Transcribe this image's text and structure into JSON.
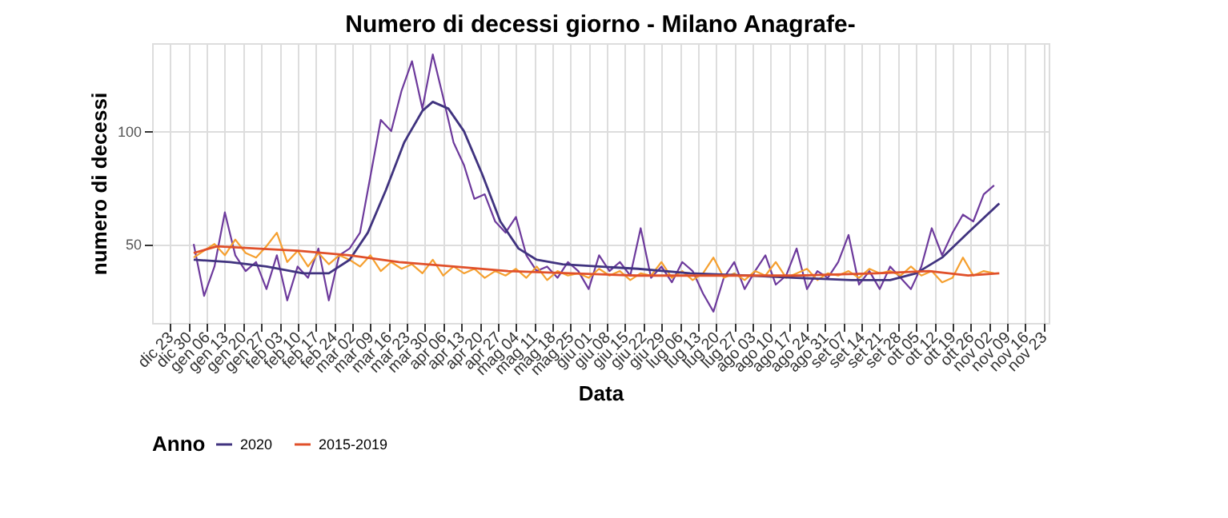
{
  "chart_data": {
    "type": "line",
    "title": "Numero di decessi giorno - Milano Anagrafe-",
    "xlabel": "Data",
    "ylabel": "numero di decessi",
    "legend_title": "Anno",
    "legend": "bottom",
    "grid": true,
    "xlim": [
      "2019-12-16",
      "2020-11-25"
    ],
    "ylim": [
      15,
      139
    ],
    "yticks": [
      50,
      100
    ],
    "xticks": [
      {
        "value": "2019-12-23",
        "label": "dic 23"
      },
      {
        "value": "2019-12-30",
        "label": "dic 30"
      },
      {
        "value": "2020-01-06",
        "label": "gen 06"
      },
      {
        "value": "2020-01-13",
        "label": "gen 13"
      },
      {
        "value": "2020-01-20",
        "label": "gen 20"
      },
      {
        "value": "2020-01-27",
        "label": "gen 27"
      },
      {
        "value": "2020-02-03",
        "label": "feb 03"
      },
      {
        "value": "2020-02-10",
        "label": "feb 10"
      },
      {
        "value": "2020-02-17",
        "label": "feb 17"
      },
      {
        "value": "2020-02-24",
        "label": "feb 24"
      },
      {
        "value": "2020-03-02",
        "label": "mar 02"
      },
      {
        "value": "2020-03-09",
        "label": "mar 09"
      },
      {
        "value": "2020-03-16",
        "label": "mar 16"
      },
      {
        "value": "2020-03-23",
        "label": "mar 23"
      },
      {
        "value": "2020-03-30",
        "label": "mar 30"
      },
      {
        "value": "2020-04-06",
        "label": "apr 06"
      },
      {
        "value": "2020-04-13",
        "label": "apr 13"
      },
      {
        "value": "2020-04-20",
        "label": "apr 20"
      },
      {
        "value": "2020-04-27",
        "label": "apr 27"
      },
      {
        "value": "2020-05-04",
        "label": "mag 04"
      },
      {
        "value": "2020-05-11",
        "label": "mag 11"
      },
      {
        "value": "2020-05-18",
        "label": "mag 18"
      },
      {
        "value": "2020-05-25",
        "label": "mag 25"
      },
      {
        "value": "2020-06-01",
        "label": "giu 01"
      },
      {
        "value": "2020-06-08",
        "label": "giu 08"
      },
      {
        "value": "2020-06-15",
        "label": "giu 15"
      },
      {
        "value": "2020-06-22",
        "label": "giu 22"
      },
      {
        "value": "2020-06-29",
        "label": "giu 29"
      },
      {
        "value": "2020-07-06",
        "label": "lug 06"
      },
      {
        "value": "2020-07-13",
        "label": "lug 13"
      },
      {
        "value": "2020-07-20",
        "label": "lug 20"
      },
      {
        "value": "2020-07-27",
        "label": "lug 27"
      },
      {
        "value": "2020-08-03",
        "label": "ago 03"
      },
      {
        "value": "2020-08-10",
        "label": "ago 10"
      },
      {
        "value": "2020-08-17",
        "label": "ago 17"
      },
      {
        "value": "2020-08-24",
        "label": "ago 24"
      },
      {
        "value": "2020-08-31",
        "label": "ago 31"
      },
      {
        "value": "2020-09-07",
        "label": "set 07"
      },
      {
        "value": "2020-09-14",
        "label": "set 14"
      },
      {
        "value": "2020-09-21",
        "label": "set 21"
      },
      {
        "value": "2020-09-28",
        "label": "set 28"
      },
      {
        "value": "2020-10-05",
        "label": "ott 05"
      },
      {
        "value": "2020-10-12",
        "label": "ott 12"
      },
      {
        "value": "2020-10-19",
        "label": "ott 19"
      },
      {
        "value": "2020-10-26",
        "label": "ott 26"
      },
      {
        "value": "2020-11-02",
        "label": "nov 02"
      },
      {
        "value": "2020-11-09",
        "label": "nov 09"
      },
      {
        "value": "2020-11-16",
        "label": "nov 16"
      },
      {
        "value": "2020-11-23",
        "label": "nov 23"
      }
    ],
    "x": [
      "2020-01-01",
      "2020-01-05",
      "2020-01-09",
      "2020-01-13",
      "2020-01-17",
      "2020-01-21",
      "2020-01-25",
      "2020-01-29",
      "2020-02-02",
      "2020-02-06",
      "2020-02-10",
      "2020-02-14",
      "2020-02-18",
      "2020-02-22",
      "2020-02-26",
      "2020-03-01",
      "2020-03-05",
      "2020-03-09",
      "2020-03-13",
      "2020-03-17",
      "2020-03-21",
      "2020-03-25",
      "2020-03-29",
      "2020-04-02",
      "2020-04-06",
      "2020-04-10",
      "2020-04-14",
      "2020-04-18",
      "2020-04-22",
      "2020-04-26",
      "2020-04-30",
      "2020-05-04",
      "2020-05-08",
      "2020-05-12",
      "2020-05-16",
      "2020-05-20",
      "2020-05-24",
      "2020-05-28",
      "2020-06-01",
      "2020-06-05",
      "2020-06-09",
      "2020-06-13",
      "2020-06-17",
      "2020-06-21",
      "2020-06-25",
      "2020-06-29",
      "2020-07-03",
      "2020-07-07",
      "2020-07-11",
      "2020-07-15",
      "2020-07-19",
      "2020-07-23",
      "2020-07-27",
      "2020-07-31",
      "2020-08-04",
      "2020-08-08",
      "2020-08-12",
      "2020-08-16",
      "2020-08-20",
      "2020-08-24",
      "2020-08-28",
      "2020-09-01",
      "2020-09-05",
      "2020-09-09",
      "2020-09-13",
      "2020-09-17",
      "2020-09-21",
      "2020-09-25",
      "2020-09-29",
      "2020-10-03",
      "2020-10-07",
      "2020-10-11",
      "2020-10-15",
      "2020-10-19",
      "2020-10-23",
      "2020-10-27",
      "2020-10-31",
      "2020-11-04"
    ],
    "series": [
      {
        "color": "#6d3a9c",
        "values": [
          50,
          27,
          40,
          64,
          45,
          38,
          42,
          30,
          45,
          25,
          40,
          35,
          48,
          25,
          45,
          48,
          55,
          80,
          105,
          100,
          118,
          131,
          110,
          134,
          115,
          95,
          85,
          70,
          72,
          60,
          55,
          62,
          45,
          38,
          40,
          35,
          42,
          38,
          30,
          45,
          38,
          42,
          36,
          57,
          35,
          40,
          33,
          42,
          38,
          28,
          20,
          35,
          42,
          30,
          38,
          45,
          32,
          36,
          48,
          30,
          38,
          35,
          42,
          54,
          32,
          38,
          30,
          40,
          35,
          30,
          40,
          57,
          45,
          55,
          63,
          60,
          72,
          76
        ]
      },
      {
        "color": "#f5a030",
        "values": [
          44,
          47,
          50,
          45,
          52,
          46,
          44,
          49,
          55,
          42,
          47,
          40,
          46,
          41,
          45,
          43,
          40,
          45,
          38,
          42,
          39,
          41,
          37,
          43,
          36,
          40,
          37,
          39,
          35,
          38,
          36,
          39,
          35,
          40,
          34,
          38,
          36,
          37,
          35,
          39,
          36,
          38,
          34,
          37,
          36,
          42,
          35,
          38,
          34,
          37,
          44,
          35,
          37,
          34,
          38,
          36,
          42,
          35,
          37,
          39,
          34,
          37,
          36,
          38,
          35,
          39,
          37,
          38,
          36,
          40,
          36,
          38,
          33,
          35,
          44,
          36,
          38,
          37
        ]
      },
      {
        "name": "2020",
        "color": "#40337f",
        "x": [
          "2020-01-01",
          "2020-01-15",
          "2020-01-29",
          "2020-02-12",
          "2020-02-22",
          "2020-03-01",
          "2020-03-08",
          "2020-03-15",
          "2020-03-22",
          "2020-03-29",
          "2020-04-02",
          "2020-04-08",
          "2020-04-14",
          "2020-04-21",
          "2020-04-28",
          "2020-05-05",
          "2020-05-12",
          "2020-05-22",
          "2020-06-05",
          "2020-06-20",
          "2020-07-10",
          "2020-08-01",
          "2020-08-20",
          "2020-09-10",
          "2020-09-25",
          "2020-10-05",
          "2020-10-15",
          "2020-10-25",
          "2020-11-06"
        ],
        "values": [
          43,
          42,
          40,
          37,
          37,
          43,
          55,
          74,
          95,
          109,
          113,
          110,
          100,
          81,
          60,
          48,
          43,
          41,
          40,
          39,
          37,
          36,
          35,
          34,
          34,
          37,
          44,
          55,
          68
        ]
      },
      {
        "name": "2015-2019",
        "color": "#e0502a",
        "x": [
          "2020-01-01",
          "2020-01-10",
          "2020-01-25",
          "2020-02-10",
          "2020-03-01",
          "2020-03-20",
          "2020-04-10",
          "2020-05-01",
          "2020-05-25",
          "2020-06-20",
          "2020-07-20",
          "2020-08-20",
          "2020-09-20",
          "2020-10-10",
          "2020-10-25",
          "2020-11-06"
        ],
        "values": [
          46,
          49,
          48,
          47,
          45,
          42,
          40,
          38,
          37,
          36,
          36,
          36,
          37,
          38,
          36,
          37
        ]
      }
    ]
  }
}
